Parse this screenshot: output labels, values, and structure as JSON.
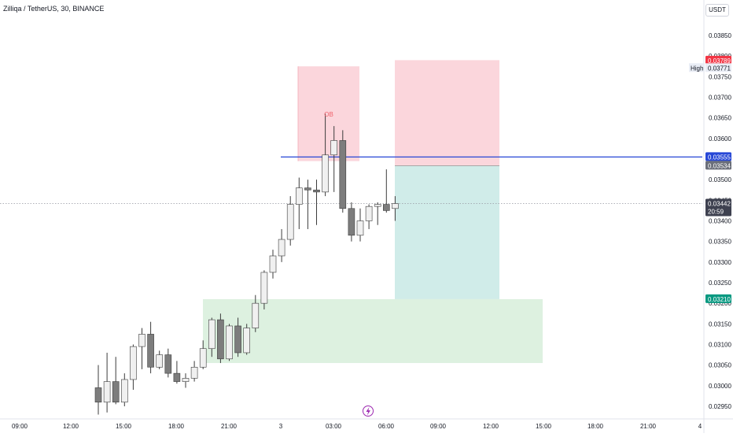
{
  "header": {
    "title": "Zilliqa / TetherUS, 30, BINANCE",
    "currency": "USDT"
  },
  "colors": {
    "bull_body": "#f0f0f0",
    "bear_body": "#7d7d7d",
    "candle_border": "#3c3c3c",
    "wick": "#3c3c3c",
    "red_zone": "#fbd6dc",
    "teal_zone": "#d0ece9",
    "green_zone": "#ddf1e0",
    "blue_line": "#2747d6",
    "red_tag": "#f23645",
    "gray_tag": "#6b6f7a",
    "dark_tag": "#3e4150",
    "green_tag": "#089981",
    "lightning_icon": "#9c27b0"
  },
  "tags": {
    "red": "0.03789",
    "high_label": "High",
    "high_value": "0.03771",
    "blue": "0.03555",
    "gray": "0.03534",
    "current_price": "0.03442",
    "countdown": "20:59",
    "green": "0.03210"
  },
  "annotation": {
    "ob": "OB"
  },
  "chart_data": {
    "type": "candlestick",
    "title": "Zilliqa / TetherUS, 30, BINANCE",
    "xlabel": "",
    "ylabel": "",
    "ylim": [
      0.0293,
      0.039
    ],
    "y_ticks": [
      "0.03850",
      "0.03800",
      "0.03750",
      "0.03700",
      "0.03650",
      "0.03600",
      "0.03550",
      "0.03500",
      "0.03450",
      "0.03400",
      "0.03350",
      "0.03300",
      "0.03250",
      "0.03200",
      "0.03150",
      "0.03100",
      "0.03050",
      "0.03000",
      "0.02950"
    ],
    "x_ticks": [
      "09:00",
      "12:00",
      "15:00",
      "18:00",
      "21:00",
      "3",
      "03:00",
      "06:00",
      "09:00",
      "12:00",
      "15:00",
      "18:00",
      "21:00",
      "4"
    ],
    "candles": [
      {
        "t": "01:30",
        "o": 0.02995,
        "h": 0.0305,
        "l": 0.0293,
        "c": 0.0296
      },
      {
        "t": "02:00",
        "o": 0.0296,
        "h": 0.0308,
        "l": 0.02935,
        "c": 0.0301
      },
      {
        "t": "02:30",
        "o": 0.0301,
        "h": 0.0307,
        "l": 0.02955,
        "c": 0.0296
      },
      {
        "t": "03:00",
        "o": 0.0296,
        "h": 0.0303,
        "l": 0.0295,
        "c": 0.03015
      },
      {
        "t": "03:30",
        "o": 0.03015,
        "h": 0.031,
        "l": 0.0299,
        "c": 0.03095
      },
      {
        "t": "04:00",
        "o": 0.03095,
        "h": 0.0314,
        "l": 0.0304,
        "c": 0.03125
      },
      {
        "t": "04:30",
        "o": 0.03125,
        "h": 0.03155,
        "l": 0.0303,
        "c": 0.03045
      },
      {
        "t": "05:00",
        "o": 0.03045,
        "h": 0.03085,
        "l": 0.0304,
        "c": 0.03075
      },
      {
        "t": "05:30",
        "o": 0.03075,
        "h": 0.0309,
        "l": 0.0302,
        "c": 0.0303
      },
      {
        "t": "06:00",
        "o": 0.0303,
        "h": 0.0306,
        "l": 0.03005,
        "c": 0.0301
      },
      {
        "t": "06:30",
        "o": 0.0301,
        "h": 0.0303,
        "l": 0.02995,
        "c": 0.03018
      },
      {
        "t": "07:00",
        "o": 0.03018,
        "h": 0.0306,
        "l": 0.0301,
        "c": 0.03045
      },
      {
        "t": "07:30",
        "o": 0.03045,
        "h": 0.0311,
        "l": 0.0304,
        "c": 0.0309
      },
      {
        "t": "08:00",
        "o": 0.0309,
        "h": 0.03165,
        "l": 0.0307,
        "c": 0.0316
      },
      {
        "t": "08:30",
        "o": 0.0316,
        "h": 0.03175,
        "l": 0.03055,
        "c": 0.03065
      },
      {
        "t": "09:00",
        "o": 0.03065,
        "h": 0.0315,
        "l": 0.0306,
        "c": 0.03145
      },
      {
        "t": "09:30",
        "o": 0.03145,
        "h": 0.03165,
        "l": 0.0307,
        "c": 0.0308
      },
      {
        "t": "10:00",
        "o": 0.0308,
        "h": 0.0315,
        "l": 0.03075,
        "c": 0.0314
      },
      {
        "t": "10:30",
        "o": 0.0314,
        "h": 0.0322,
        "l": 0.0313,
        "c": 0.032
      },
      {
        "t": "11:00",
        "o": 0.032,
        "h": 0.0328,
        "l": 0.03185,
        "c": 0.03275
      },
      {
        "t": "11:30",
        "o": 0.03275,
        "h": 0.0333,
        "l": 0.0326,
        "c": 0.03315
      },
      {
        "t": "12:00",
        "o": 0.03315,
        "h": 0.0338,
        "l": 0.033,
        "c": 0.03355
      },
      {
        "t": "12:30",
        "o": 0.03355,
        "h": 0.0346,
        "l": 0.0334,
        "c": 0.0344
      },
      {
        "t": "13:00",
        "o": 0.0344,
        "h": 0.03505,
        "l": 0.0338,
        "c": 0.0348
      },
      {
        "t": "13:30",
        "o": 0.0348,
        "h": 0.035,
        "l": 0.0338,
        "c": 0.03475
      },
      {
        "t": "14:00",
        "o": 0.03475,
        "h": 0.035,
        "l": 0.0339,
        "c": 0.0347
      },
      {
        "t": "14:30",
        "o": 0.0347,
        "h": 0.0366,
        "l": 0.0346,
        "c": 0.0356
      },
      {
        "t": "15:00",
        "o": 0.0356,
        "h": 0.0363,
        "l": 0.0347,
        "c": 0.03595
      },
      {
        "t": "15:30",
        "o": 0.03595,
        "h": 0.0362,
        "l": 0.0342,
        "c": 0.0343
      },
      {
        "t": "16:00",
        "o": 0.0343,
        "h": 0.03445,
        "l": 0.0335,
        "c": 0.03365
      },
      {
        "t": "16:30",
        "o": 0.03365,
        "h": 0.0343,
        "l": 0.0335,
        "c": 0.034
      },
      {
        "t": "17:00",
        "o": 0.034,
        "h": 0.0344,
        "l": 0.0338,
        "c": 0.03435
      },
      {
        "t": "17:30",
        "o": 0.03435,
        "h": 0.03445,
        "l": 0.0339,
        "c": 0.0344
      },
      {
        "t": "18:00",
        "o": 0.0344,
        "h": 0.03525,
        "l": 0.0342,
        "c": 0.03425
      },
      {
        "t": "18:30",
        "o": 0.0343,
        "h": 0.0346,
        "l": 0.034,
        "c": 0.03442
      }
    ],
    "zones": [
      {
        "label": "OB",
        "from_t": "14:30",
        "to_t": "16:30",
        "top": 0.03775,
        "bottom": 0.03545,
        "color": "red"
      },
      {
        "label": "",
        "from_t": "02:30",
        "to_t": "10:30",
        "top": 0.0379,
        "bottom": 0.03534,
        "color": "red"
      },
      {
        "label": "",
        "from_t": "02:30",
        "to_t": "10:30",
        "top": 0.03534,
        "bottom": 0.0321,
        "color": "teal"
      },
      {
        "label": "",
        "from_t": "09:30",
        "to_t": "06:30",
        "top": 0.0321,
        "bottom": 0.03055,
        "color": "green"
      }
    ],
    "horizontal_lines": [
      {
        "value": 0.03555,
        "style": "solid",
        "color": "blue"
      },
      {
        "value": 0.03442,
        "style": "dotted",
        "color": "gray"
      }
    ],
    "grid": false
  }
}
